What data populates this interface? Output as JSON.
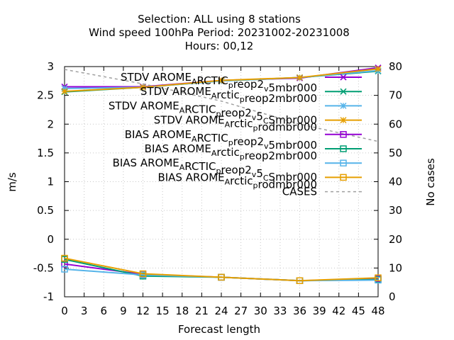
{
  "chart_data": {
    "type": "line",
    "title_lines": [
      "Selection: ALL using     8 stations",
      "Wind speed 100hPa   Period: 20231002-20231008",
      "Hours:  00,12"
    ],
    "xlabel": "Forecast length",
    "ylabel": "m/s",
    "y2label": "No cases",
    "x_ticks": [
      "0",
      "3",
      "6",
      "9",
      "12",
      "15",
      "18",
      "21",
      "24",
      "27",
      "30",
      "33",
      "36",
      "39",
      "42",
      "45",
      "48"
    ],
    "y_ticks": [
      "3",
      "2.5",
      "2",
      "1.5",
      "1",
      "0.5",
      "0",
      "-0.5",
      "-1"
    ],
    "y2_ticks": [
      "80",
      "70",
      "60",
      "50",
      "40",
      "30",
      "20",
      "10",
      "0"
    ],
    "xlim": [
      0,
      48
    ],
    "ylim": [
      -1,
      3
    ],
    "y2lim": [
      0,
      80
    ],
    "grid": true,
    "legend_position": "top-right",
    "series": [
      {
        "label_parts": [
          [
            "STDV AROME",
            ""
          ],
          [
            "A",
            "sub"
          ],
          [
            "RCTIC",
            ""
          ],
          [
            "p",
            "sub"
          ],
          [
            "reop2",
            ""
          ],
          [
            "v",
            "sub"
          ],
          [
            "5mbr000",
            ""
          ]
        ],
        "color": "#9400d3",
        "marker": "x",
        "axis": "y1",
        "x": [
          0,
          12,
          24,
          36,
          48
        ],
        "y": [
          2.65,
          2.65,
          2.76,
          2.8,
          2.98
        ]
      },
      {
        "label_parts": [
          [
            "STDV AROME",
            ""
          ],
          [
            "A",
            "sub"
          ],
          [
            "rctic",
            ""
          ],
          [
            "p",
            "sub"
          ],
          [
            "reop2mbr000",
            ""
          ]
        ],
        "color": "#009e73",
        "marker": "x",
        "axis": "y1",
        "x": [
          0,
          12,
          24,
          36,
          48
        ],
        "y": [
          2.56,
          2.64,
          2.75,
          2.81,
          2.92
        ]
      },
      {
        "label_parts": [
          [
            "STDV AROME",
            ""
          ],
          [
            "A",
            "sub"
          ],
          [
            "RCTIC",
            ""
          ],
          [
            "p",
            "sub"
          ],
          [
            "reop2",
            ""
          ],
          [
            "v",
            "sub"
          ],
          [
            "5",
            ""
          ],
          [
            "C",
            "sub"
          ],
          [
            "Smbr000",
            ""
          ]
        ],
        "color": "#56b4e9",
        "marker": "asterisk",
        "axis": "y1",
        "x": [
          0,
          12,
          24,
          36,
          48
        ],
        "y": [
          2.62,
          2.64,
          2.75,
          2.81,
          2.93
        ]
      },
      {
        "label_parts": [
          [
            "STDV AROME",
            ""
          ],
          [
            "A",
            "sub"
          ],
          [
            "rctic",
            ""
          ],
          [
            "p",
            "sub"
          ],
          [
            "rodmbr000",
            ""
          ]
        ],
        "color": "#e69f00",
        "marker": "asterisk",
        "axis": "y1",
        "x": [
          0,
          12,
          24,
          36,
          48
        ],
        "y": [
          2.57,
          2.64,
          2.76,
          2.81,
          2.96
        ]
      },
      {
        "label_parts": [
          [
            "BIAS AROME",
            ""
          ],
          [
            "A",
            "sub"
          ],
          [
            "RCTIC",
            ""
          ],
          [
            "p",
            "sub"
          ],
          [
            "reop2",
            ""
          ],
          [
            "v",
            "sub"
          ],
          [
            "5mbr000",
            ""
          ]
        ],
        "color": "#9400d3",
        "marker": "square",
        "axis": "y1",
        "x": [
          0,
          12,
          24,
          36,
          48
        ],
        "y": [
          -0.43,
          -0.61,
          -0.66,
          -0.72,
          -0.69
        ]
      },
      {
        "label_parts": [
          [
            "BIAS AROME",
            ""
          ],
          [
            "A",
            "sub"
          ],
          [
            "rctic",
            ""
          ],
          [
            "p",
            "sub"
          ],
          [
            "reop2mbr000",
            ""
          ]
        ],
        "color": "#009e73",
        "marker": "square",
        "axis": "y1",
        "x": [
          0,
          12,
          24,
          36,
          48
        ],
        "y": [
          -0.35,
          -0.64,
          -0.66,
          -0.72,
          -0.7
        ]
      },
      {
        "label_parts": [
          [
            "BIAS AROME",
            ""
          ],
          [
            "A",
            "sub"
          ],
          [
            "RCTIC",
            ""
          ],
          [
            "p",
            "sub"
          ],
          [
            "reop2",
            ""
          ],
          [
            "v",
            "sub"
          ],
          [
            "5",
            ""
          ],
          [
            "C",
            "sub"
          ],
          [
            "Smbr000",
            ""
          ]
        ],
        "color": "#56b4e9",
        "marker": "square",
        "axis": "y1",
        "x": [
          0,
          12,
          24,
          36,
          48
        ],
        "y": [
          -0.52,
          -0.62,
          -0.66,
          -0.72,
          -0.71
        ]
      },
      {
        "label_parts": [
          [
            "BIAS AROME",
            ""
          ],
          [
            "A",
            "sub"
          ],
          [
            "rctic",
            ""
          ],
          [
            "p",
            "sub"
          ],
          [
            "rodmbr000",
            ""
          ]
        ],
        "color": "#e69f00",
        "marker": "square",
        "axis": "y1",
        "x": [
          0,
          12,
          24,
          36,
          48
        ],
        "y": [
          -0.33,
          -0.6,
          -0.66,
          -0.72,
          -0.67
        ]
      },
      {
        "label_parts": [
          [
            "CASES",
            ""
          ]
        ],
        "color": "#a0a0a0",
        "marker": "none",
        "dashed": true,
        "axis": "y2",
        "x": [
          0,
          12,
          24,
          36,
          48
        ],
        "y": [
          79,
          74,
          68,
          60,
          54
        ]
      }
    ]
  }
}
